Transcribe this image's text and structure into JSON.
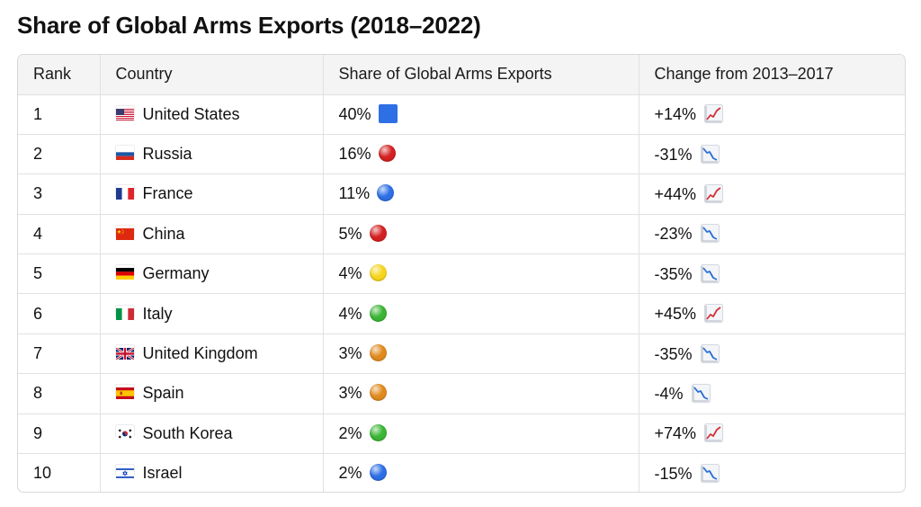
{
  "title": "Share of Global Arms Exports (2018–2022)",
  "table": {
    "headers": [
      "Rank",
      "Country",
      "Share of Global Arms Exports",
      "Change from 2013–2017"
    ],
    "rows": [
      {
        "rank": "1",
        "country": "United States",
        "flag": "us-flag-icon",
        "share": "40%",
        "marker": "blue-square-icon",
        "change": "+14%",
        "trend": "chart-increasing-icon"
      },
      {
        "rank": "2",
        "country": "Russia",
        "flag": "russia-flag-icon",
        "share": "16%",
        "marker": "red-circle-icon",
        "change": "-31%",
        "trend": "chart-decreasing-icon"
      },
      {
        "rank": "3",
        "country": "France",
        "flag": "france-flag-icon",
        "share": "11%",
        "marker": "blue-circle-icon",
        "change": "+44%",
        "trend": "chart-increasing-icon"
      },
      {
        "rank": "4",
        "country": "China",
        "flag": "china-flag-icon",
        "share": "5%",
        "marker": "red-circle-icon",
        "change": "-23%",
        "trend": "chart-decreasing-icon"
      },
      {
        "rank": "5",
        "country": "Germany",
        "flag": "germany-flag-icon",
        "share": "4%",
        "marker": "yellow-circle-icon",
        "change": "-35%",
        "trend": "chart-decreasing-icon"
      },
      {
        "rank": "6",
        "country": "Italy",
        "flag": "italy-flag-icon",
        "share": "4%",
        "marker": "green-circle-icon",
        "change": "+45%",
        "trend": "chart-increasing-icon"
      },
      {
        "rank": "7",
        "country": "United Kingdom",
        "flag": "uk-flag-icon",
        "share": "3%",
        "marker": "orange-circle-icon",
        "change": "-35%",
        "trend": "chart-decreasing-icon"
      },
      {
        "rank": "8",
        "country": "Spain",
        "flag": "spain-flag-icon",
        "share": "3%",
        "marker": "orange-circle-icon",
        "change": "-4%",
        "trend": "chart-decreasing-icon"
      },
      {
        "rank": "9",
        "country": "South Korea",
        "flag": "south-korea-flag-icon",
        "share": "2%",
        "marker": "green-circle-icon",
        "change": "+74%",
        "trend": "chart-increasing-icon"
      },
      {
        "rank": "10",
        "country": "Israel",
        "flag": "israel-flag-icon",
        "share": "2%",
        "marker": "blue-circle-icon",
        "change": "-15%",
        "trend": "chart-decreasing-icon"
      }
    ]
  },
  "colors": {
    "header_bg": "#f4f4f4",
    "border": "#d9d9d9",
    "blue": "#2e6fe6",
    "red": "#d42020",
    "yellow": "#f7d51d",
    "green": "#3bb534",
    "orange": "#e08a1e",
    "trend_up": "#d5313b",
    "trend_down": "#2a6fd6"
  }
}
